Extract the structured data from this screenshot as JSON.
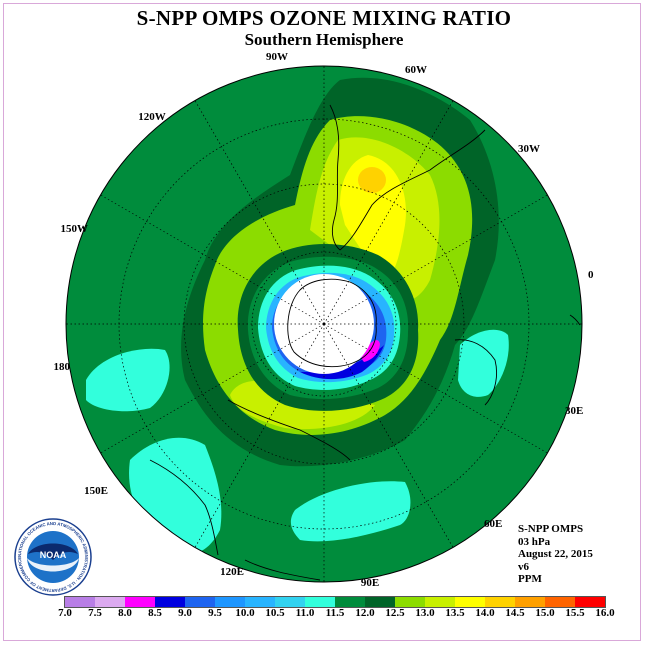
{
  "title": "S-NPP OMPS OZONE MIXING RATIO",
  "subtitle": "Southern Hemisphere",
  "longitude_labels": [
    "90W",
    "60W",
    "30W",
    "0",
    "30E",
    "60E",
    "90E",
    "120E",
    "150E",
    "180",
    "150W",
    "120W"
  ],
  "info": {
    "instrument": "S-NPP OMPS",
    "level": "03 hPa",
    "date": "August 22, 2015",
    "version": "v6",
    "units": "PPM"
  },
  "logo": {
    "text": "NOAA",
    "ring_text": "NATIONAL OCEANIC AND ATMOSPHERIC ADMINISTRATION · U.S. DEPARTMENT OF COMMERCE"
  },
  "colorbar": {
    "ticks": [
      "7.0",
      "7.5",
      "8.0",
      "8.5",
      "9.0",
      "9.5",
      "10.0",
      "10.5",
      "11.0",
      "11.5",
      "12.0",
      "12.5",
      "13.0",
      "13.5",
      "14.0",
      "14.5",
      "15.0",
      "15.5",
      "16.0"
    ],
    "colors": [
      "#b87ee6",
      "#dcaaf0",
      "#ff00ff",
      "#0000e0",
      "#1e64f0",
      "#1e96ff",
      "#28b4ff",
      "#32d2f0",
      "#32ffdc",
      "#008c3c",
      "#006428",
      "#8cdc00",
      "#c8f000",
      "#ffff00",
      "#ffd200",
      "#ffa000",
      "#ff6400",
      "#ff0000",
      "#8c5a3c"
    ]
  }
}
